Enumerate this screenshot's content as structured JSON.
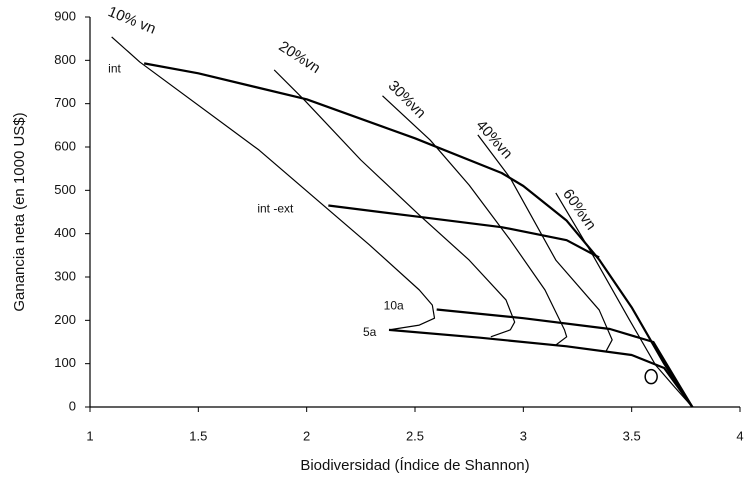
{
  "chart_data": {
    "type": "line",
    "xlabel": "Biodiversidad (Índice de Shannon)",
    "ylabel": "Ganancia neta (en 1000 US$)",
    "xlim": [
      1,
      4
    ],
    "xticks": [
      1,
      1.5,
      2,
      2.5,
      3,
      3.5,
      4
    ],
    "ylim": [
      0,
      900
    ],
    "yticks": [
      0,
      100,
      200,
      300,
      400,
      500,
      600,
      700,
      800,
      900
    ],
    "series": [
      {
        "name": "int",
        "color": "#000000",
        "line_width": 2.2,
        "x": [
          1.25,
          1.5,
          2.0,
          2.5,
          2.9,
          3.0,
          3.2,
          3.35,
          3.5,
          3.65,
          3.78
        ],
        "y": [
          793,
          770,
          710,
          620,
          540,
          510,
          430,
          340,
          230,
          100,
          0
        ]
      },
      {
        "name": "int -ext",
        "color": "#000000",
        "line_width": 2.2,
        "x": [
          2.1,
          2.5,
          2.9,
          3.2,
          3.35
        ],
        "y": [
          465,
          440,
          415,
          385,
          345
        ]
      },
      {
        "name": "10a",
        "color": "#000000",
        "line_width": 2.2,
        "x": [
          2.6,
          3.0,
          3.4,
          3.6,
          3.78
        ],
        "y": [
          225,
          205,
          180,
          150,
          0
        ]
      },
      {
        "name": "5a",
        "color": "#000000",
        "line_width": 2.2,
        "x": [
          2.38,
          2.8,
          3.2,
          3.5,
          3.65,
          3.78
        ],
        "y": [
          178,
          160,
          140,
          120,
          90,
          0
        ]
      },
      {
        "name": "10% vn",
        "color": "#000000",
        "line_width": 1.2,
        "x": [
          1.1,
          1.23,
          1.78,
          2.29,
          2.52,
          2.58,
          2.59,
          2.52,
          2.38
        ],
        "y": [
          854,
          796,
          593,
          374,
          270,
          235,
          205,
          189,
          178
        ]
      },
      {
        "name": "20%vn",
        "color": "#000000",
        "line_width": 1.2,
        "x": [
          1.85,
          1.99,
          2.25,
          2.52,
          2.75,
          2.92,
          2.96,
          2.94,
          2.85
        ],
        "y": [
          778,
          708,
          570,
          443,
          339,
          247,
          196,
          178,
          162
        ]
      },
      {
        "name": "30%vn",
        "color": "#000000",
        "line_width": 1.2,
        "x": [
          2.35,
          2.57,
          2.75,
          2.94,
          3.1,
          3.19,
          3.2,
          3.15
        ],
        "y": [
          718,
          616,
          512,
          385,
          270,
          178,
          162,
          143
        ]
      },
      {
        "name": "40%vn",
        "color": "#000000",
        "line_width": 1.2,
        "x": [
          2.79,
          2.94,
          3.15,
          3.35,
          3.41,
          3.38
        ],
        "y": [
          628,
          528,
          339,
          224,
          155,
          127
        ]
      },
      {
        "name": "60%vn",
        "color": "#000000",
        "line_width": 1.2,
        "x": [
          3.15,
          3.32,
          3.49,
          3.61,
          3.7,
          3.78
        ],
        "y": [
          494,
          351,
          201,
          97,
          45,
          0
        ]
      }
    ],
    "points": {
      "x": [
        3.59
      ],
      "y": [
        70
      ]
    }
  }
}
